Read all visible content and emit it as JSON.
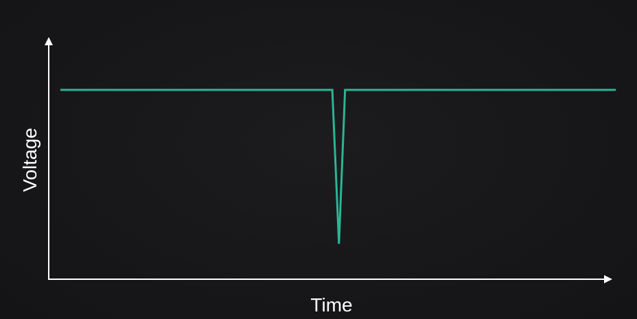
{
  "chart_data": {
    "type": "line",
    "title": "",
    "xlabel": "Time",
    "ylabel": "Voltage",
    "grid": false,
    "legend": "none",
    "axis_ticks": false,
    "line_color": "#2bb596",
    "axis_color": "#ffffff",
    "background_color": "#161618",
    "xlim": [
      0,
      100
    ],
    "ylim": [
      0,
      100
    ],
    "series": [
      {
        "values": [
          {
            "x": 2.1,
            "y": 80
          },
          {
            "x": 51.0,
            "y": 80
          },
          {
            "x": 52.2,
            "y": 15
          },
          {
            "x": 53.3,
            "y": 80
          },
          {
            "x": 102.0,
            "y": 80
          }
        ]
      }
    ]
  }
}
